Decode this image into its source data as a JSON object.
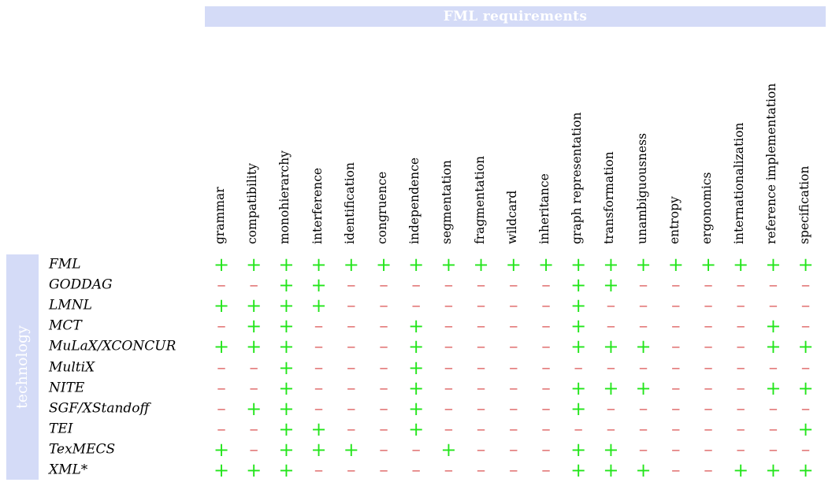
{
  "header": {
    "title": "FML requirements"
  },
  "side": {
    "title": "technology"
  },
  "symbols": {
    "plus": "+",
    "minus": "−"
  },
  "colors": {
    "band": "#d4dbf7",
    "plus": "#22e51a",
    "minus": "#d94b4b"
  },
  "columns": [
    "grammar",
    "compatibility",
    "monohierarchy",
    "interference",
    "identification",
    "congruence",
    "independence",
    "segmentation",
    "fragmentation",
    "wildcard",
    "inheritance",
    "graph representation",
    "transformation",
    "unambiguousness",
    "entropy",
    "ergonomics",
    "internationalization",
    "reference implementation",
    "specification"
  ],
  "rows": [
    {
      "name": "FML",
      "cells": "+++++++++++++++++++"
    },
    {
      "name": "GODDAG",
      "cells": "--++-------++------"
    },
    {
      "name": "LMNL",
      "cells": "++++-------+-------"
    },
    {
      "name": "MCT",
      "cells": "-++---+----+-----+-"
    },
    {
      "name": "MuLaX/XCONCUR",
      "cells": "+++---+----+++---++"
    },
    {
      "name": "MultiX",
      "cells": "--+---+------------"
    },
    {
      "name": "NITE",
      "cells": "--+---+----+++---++"
    },
    {
      "name": "SGF/XStandoff",
      "cells": "-++---+----+-------"
    },
    {
      "name": "TEI",
      "cells": "--++--+-----------+"
    },
    {
      "name": "TexMECS",
      "cells": "+-+++--+---++------"
    },
    {
      "name": "XML*",
      "cells": "+++--------+++--+++"
    }
  ]
}
